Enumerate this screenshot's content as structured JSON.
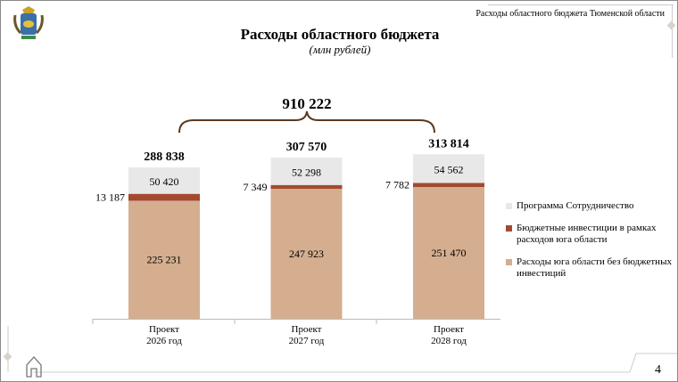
{
  "header": {
    "text": "Расходы областного бюджета Тюменской области"
  },
  "title": "Расходы областного бюджета",
  "subtitle": "(млн рублей)",
  "page_number": "4",
  "chart_data": {
    "type": "bar",
    "stacked": true,
    "title": "Расходы областного бюджета",
    "subtitle": "(млн рублей)",
    "categories": [
      "Проект\n2026 год",
      "Проект\n2027 год",
      "Проект\n2028 год"
    ],
    "category_lines": [
      [
        "Проект",
        "2026 год"
      ],
      [
        "Проект",
        "2027 год"
      ],
      [
        "Проект",
        "2028 год"
      ]
    ],
    "series": [
      {
        "name": "Расходы юга области без бюджетных инвестиций",
        "values": [
          225231,
          247923,
          251470
        ],
        "labels": [
          "225 231",
          "247 923",
          "251 470"
        ],
        "color": "#d4ae8f"
      },
      {
        "name": "Бюджетные инвестиции в рамках расходов юга области",
        "values": [
          13187,
          7349,
          7782
        ],
        "labels": [
          "13 187",
          "7 349",
          "7 782"
        ],
        "color": "#a34a30"
      },
      {
        "name": "Программа Сотрудничество",
        "values": [
          50420,
          52298,
          54562
        ],
        "labels": [
          "50 420",
          "52 298",
          "54 562"
        ],
        "color": "#e8e8e8"
      }
    ],
    "totals": [
      288838,
      307570,
      313814
    ],
    "total_labels": [
      "288 838",
      "307 570",
      "313 814"
    ],
    "grand_total": 910222,
    "grand_total_label": "910 222",
    "legend_position": "right",
    "legend": [
      "Программа Сотрудничество",
      "Бюджетные инвестиции в рамках расходов юга области",
      "Расходы юга области без бюджетных инвестиций"
    ],
    "ylim": [
      0,
      313814
    ],
    "grid": false
  }
}
